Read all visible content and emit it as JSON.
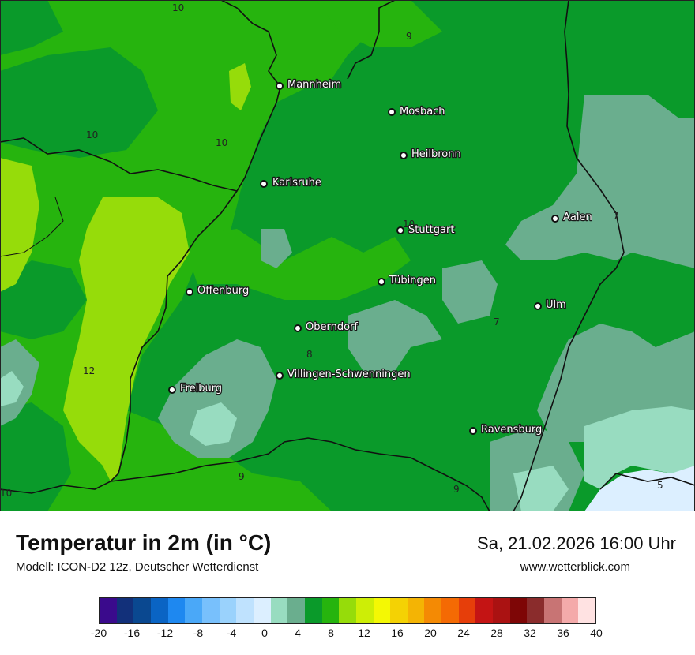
{
  "title": "Temperatur in 2m (in °C)",
  "subtitle": "Modell: ICON-D2 12z, Deutscher Wetterdienst",
  "datetime": "Sa, 21.02.2026 16:00 Uhr",
  "website": "www.wetterblick.com",
  "cities": [
    {
      "name": "Mannheim"
    },
    {
      "name": "Mosbach"
    },
    {
      "name": "Heilbronn"
    },
    {
      "name": "Karlsruhe"
    },
    {
      "name": "Aalen"
    },
    {
      "name": "Stuttgart"
    },
    {
      "name": "Tübingen"
    },
    {
      "name": "Offenburg"
    },
    {
      "name": "Ulm"
    },
    {
      "name": "Oberndorf"
    },
    {
      "name": "Villingen-Schwenningen"
    },
    {
      "name": "Freiburg"
    },
    {
      "name": "Ravensburg"
    }
  ],
  "contour_labels": [
    "10",
    "9",
    "10",
    "10",
    "10",
    "7",
    "7",
    "8",
    "12",
    "9",
    "9",
    "5",
    "10"
  ],
  "colorbar": {
    "colors": [
      "#3a0a8c",
      "#12307a",
      "#0a4890",
      "#0a64c4",
      "#1e88f0",
      "#4aa8f8",
      "#78c0fc",
      "#9ad2fc",
      "#bfe2fe",
      "#dcefff",
      "#98dcc0",
      "#6aae8e",
      "#0a9a2a",
      "#26b40e",
      "#96dc0a",
      "#cdee06",
      "#f4f804",
      "#f4d204",
      "#f4b404",
      "#f48a04",
      "#f46a04",
      "#e63e0a",
      "#c41414",
      "#aa1212",
      "#7e0606",
      "#8a2c2c",
      "#c87474",
      "#f4aaaa",
      "#ffe2e2"
    ],
    "ticks": [
      "-20",
      "-16",
      "-12",
      "-8",
      "-4",
      "0",
      "4",
      "8",
      "12",
      "16",
      "20",
      "24",
      "28",
      "32",
      "36",
      "40"
    ],
    "min": -20,
    "max": 40
  },
  "colors": {
    "green_dark": "#0a9a2a",
    "green_mid": "#26b40e",
    "yellow_green": "#96dc0a",
    "teal": "#6aae8e",
    "mint": "#98dcc0",
    "pale_blue": "#dcefff"
  }
}
